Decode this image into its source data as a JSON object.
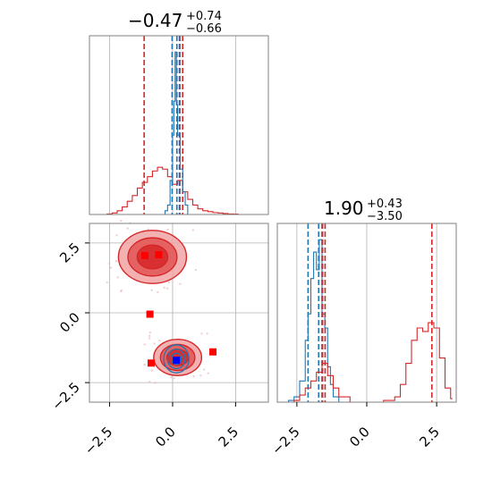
{
  "colors": {
    "red": "#d62728",
    "blue": "#1f77b4",
    "marker_blue": "#0000ff",
    "marker_red": "#ff0000",
    "grid": "#b0b0b0",
    "frame": "#808080"
  },
  "chart_data": [
    {
      "panel": "top-left",
      "type": "histogram",
      "title": {
        "value": "−0.47",
        "upper": "+0.74",
        "lower": "−0.66"
      },
      "xlim": [
        -3.3,
        3.8
      ],
      "grid": true,
      "series": [
        {
          "color": "red",
          "bins_x": [
            -2.6,
            -2.4,
            -2.2,
            -2.0,
            -1.8,
            -1.6,
            -1.4,
            -1.2,
            -1.0,
            -0.8,
            -0.6,
            -0.4,
            -0.2,
            0.0,
            0.2,
            0.4,
            0.6,
            0.8,
            1.0,
            1.2,
            1.4,
            1.6,
            1.8,
            2.0,
            2.2,
            2.4,
            2.6
          ],
          "density": [
            0.003,
            0.008,
            0.02,
            0.04,
            0.07,
            0.1,
            0.14,
            0.17,
            0.2,
            0.23,
            0.25,
            0.24,
            0.2,
            0.16,
            0.18,
            0.12,
            0.08,
            0.05,
            0.03,
            0.02,
            0.015,
            0.01,
            0.008,
            0.005,
            0.003,
            0.002,
            0.0
          ],
          "quantile_lines": [
            -1.13,
            0.27,
            0.4
          ]
        },
        {
          "color": "blue",
          "bins_x": [
            -0.3,
            -0.2,
            -0.1,
            0.0,
            0.05,
            0.1,
            0.15,
            0.2,
            0.3,
            0.4,
            0.5,
            0.6
          ],
          "density": [
            0.02,
            0.05,
            0.18,
            0.42,
            0.6,
            0.86,
            0.58,
            0.42,
            0.24,
            0.12,
            0.05,
            0.0
          ],
          "quantile_lines": [
            -0.02,
            0.17,
            0.29
          ]
        }
      ]
    },
    {
      "panel": "bottom-right",
      "type": "histogram",
      "title": {
        "value": "1.90",
        "upper": "+0.43",
        "lower": "−3.50"
      },
      "xlim": [
        -3.2,
        3.2
      ],
      "xticks": [
        "−2.5",
        "0.0",
        "2.5"
      ],
      "grid": true,
      "series": [
        {
          "color": "blue",
          "bins_x": [
            -2.8,
            -2.6,
            -2.4,
            -2.2,
            -2.1,
            -2.0,
            -1.9,
            -1.8,
            -1.7,
            -1.6,
            -1.5,
            -1.4,
            -1.3,
            -1.2,
            -1.0
          ],
          "density": [
            0.01,
            0.03,
            0.12,
            0.35,
            0.5,
            0.7,
            0.85,
            0.75,
            0.92,
            0.5,
            0.42,
            0.2,
            0.1,
            0.03,
            0.0
          ],
          "quantile_lines": [
            -2.1,
            -1.72,
            -1.58
          ]
        },
        {
          "color": "red",
          "bins_x": [
            -2.6,
            -2.4,
            -2.2,
            -2.0,
            -1.8,
            -1.6,
            -1.4,
            -1.2,
            -1.0,
            -0.6,
            -0.2,
            0.2,
            0.6,
            1.0,
            1.2,
            1.4,
            1.6,
            1.8,
            2.0,
            2.2,
            2.4,
            2.6,
            2.8,
            3.0
          ],
          "density": [
            0.01,
            0.04,
            0.08,
            0.12,
            0.17,
            0.22,
            0.15,
            0.08,
            0.03,
            0.0,
            0.0,
            0.0,
            0.01,
            0.03,
            0.1,
            0.22,
            0.35,
            0.42,
            0.4,
            0.45,
            0.42,
            0.25,
            0.08,
            0.02
          ],
          "quantile_lines": [
            -1.6,
            -1.49,
            2.33
          ]
        }
      ]
    },
    {
      "panel": "bottom-left",
      "type": "contour-scatter",
      "xlim": [
        -3.3,
        3.8
      ],
      "ylim": [
        -3.2,
        3.2
      ],
      "xticks": [
        "−2.5",
        "0.0",
        "2.5"
      ],
      "yticks": [
        "−2.5",
        "0.0",
        "2.5"
      ],
      "grid": true,
      "red_modes": [
        {
          "cx": -0.8,
          "cy": 2.0,
          "rx": 1.35,
          "ry": 0.95
        },
        {
          "cx": 0.2,
          "cy": -1.6,
          "rx": 0.95,
          "ry": 0.65
        }
      ],
      "blue_modes": [
        {
          "cx": 0.15,
          "cy": -1.65,
          "rx": 0.5,
          "ry": 0.5
        }
      ],
      "red_markers": [
        {
          "x": -1.1,
          "y": 2.05
        },
        {
          "x": -0.55,
          "y": 2.08
        },
        {
          "x": -0.9,
          "y": -0.05
        },
        {
          "x": -0.85,
          "y": -1.8
        },
        {
          "x": 1.6,
          "y": -1.4
        }
      ],
      "blue_markers": [
        {
          "x": 0.15,
          "y": -1.7
        }
      ]
    }
  ]
}
